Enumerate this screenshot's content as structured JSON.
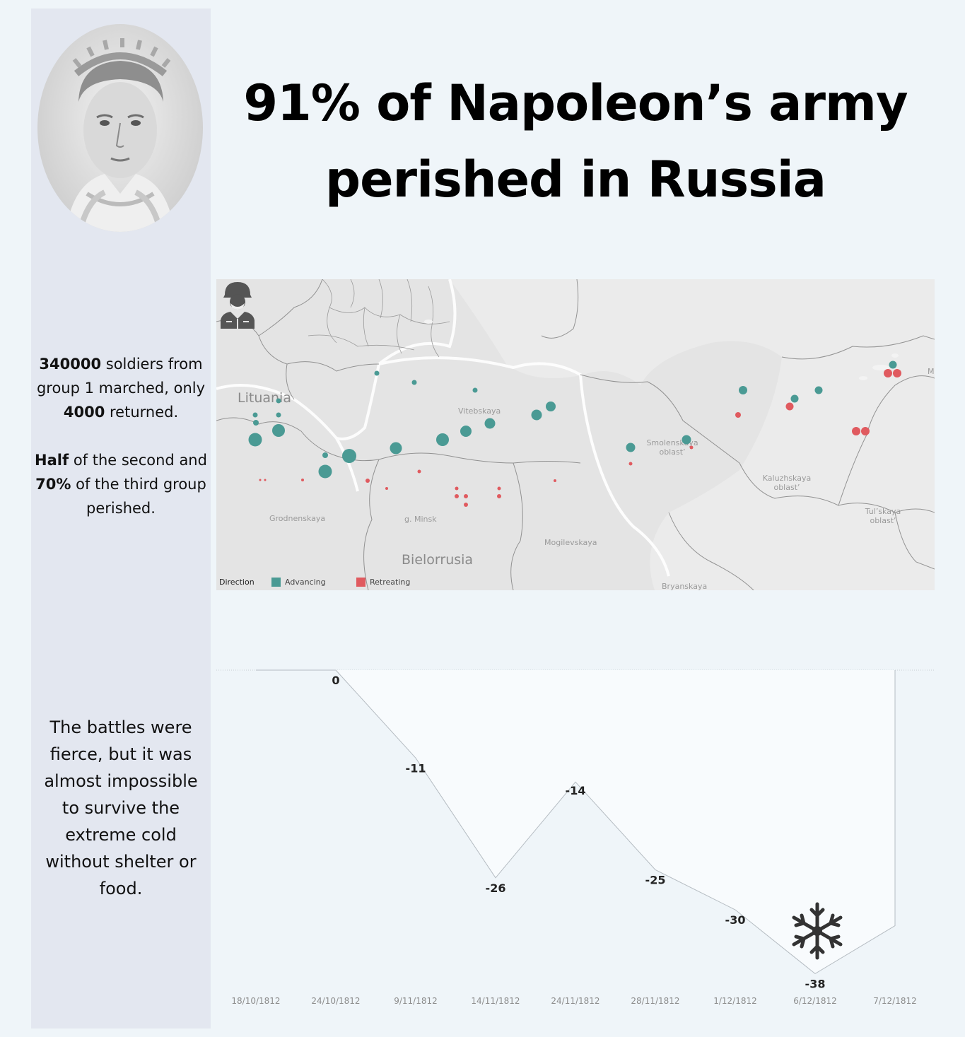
{
  "title": "91% of Napoleon’s army perished in Russia",
  "sidebar": {
    "stats_line1": {
      "bold": "340000",
      "rest": " soldiers from group 1 marched, only ",
      "bold2": "4000",
      "rest2": " returned."
    },
    "stats_line2": {
      "bold": "Half",
      "rest": " of the second and ",
      "bold2": "70%",
      "rest2": " of the third group perished."
    },
    "battles_text": "The battles were fierce, but it was almost impossible to survive the extreme cold without shelter or food."
  },
  "map": {
    "country_labels": [
      "Lituania",
      "Bielorrusia"
    ],
    "region_labels": [
      "Vitebskaya",
      "Smolenskaya oblast’",
      "Kaluzhskaya oblast’",
      "Tul’skaya oblast’",
      "Grodnenskaya",
      "g. Minsk",
      "Mogilevskaya",
      "Bryanskaya",
      "M"
    ],
    "legend": {
      "title": "Direction",
      "items": [
        {
          "label": "Advancing",
          "color": "#4a9a94"
        },
        {
          "label": "Retreating",
          "color": "#e05a5f"
        }
      ]
    },
    "icons": [
      "soldier-icon"
    ]
  },
  "chart_data": [
    {
      "type": "scatter",
      "encoding": "geographic map; point size = troop count",
      "series": [
        {
          "name": "Advancing",
          "color": "#4a9a94",
          "points": 24
        },
        {
          "name": "Retreating",
          "color": "#e05a5f",
          "points": 24
        }
      ]
    },
    {
      "type": "area",
      "categories": [
        "18/10/1812",
        "24/10/1812",
        "9/11/1812",
        "14/11/1812",
        "24/11/1812",
        "28/11/1812",
        "1/12/1812",
        "6/12/1812",
        "7/12/1812"
      ],
      "values": [
        0,
        0,
        -11,
        -26,
        -14,
        -25,
        -30,
        -38,
        -32
      ],
      "data_labels": [
        "",
        "0",
        "-11",
        "-26",
        "-14",
        "-25",
        "-30",
        "-38",
        ""
      ],
      "ylim": [
        -40,
        0
      ],
      "icons": [
        "snowflake-icon"
      ]
    }
  ]
}
